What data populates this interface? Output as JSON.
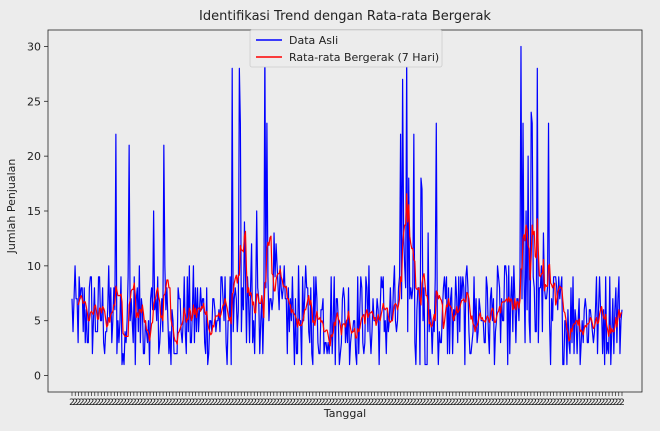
{
  "chart_data": {
    "type": "line",
    "title": "Identifikasi Trend dengan Rata-rata Bergerak",
    "xlabel": "Tanggal",
    "ylabel": "Jumlah Penjualan",
    "ylim": [
      -1.5,
      31.5
    ],
    "yticks": [
      0,
      5,
      10,
      15,
      20,
      25,
      30
    ],
    "x_tick_label": "2",
    "legend_position": "top-center",
    "grid": false,
    "n_points": 540,
    "series": [
      {
        "name": "Data Asli",
        "color": "#0000ff",
        "baseline_range": [
          1,
          10
        ],
        "spike_windows": [
          {
            "start": 40,
            "end": 95,
            "max": 30
          },
          {
            "start": 155,
            "end": 200,
            "max": 30
          },
          {
            "start": 320,
            "end": 360,
            "max": 30
          },
          {
            "start": 430,
            "end": 470,
            "max": 30
          }
        ]
      },
      {
        "name": "Rata-rata Bergerak (7 Hari)",
        "color": "#ff0000",
        "window": 7
      }
    ]
  }
}
